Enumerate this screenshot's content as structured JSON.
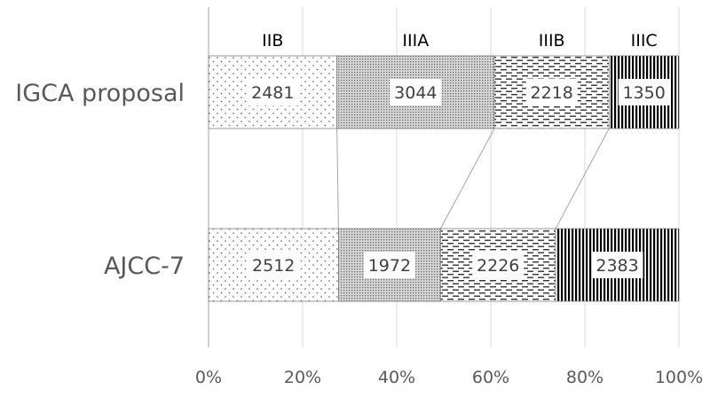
{
  "chart_data": {
    "type": "bar",
    "orientation": "horizontal",
    "stacking": "percent",
    "categories": [
      "IGCA proposal",
      "AJCC-7"
    ],
    "series": [
      {
        "name": "IIB",
        "values": [
          2481,
          2512
        ],
        "pattern": "sparse-dots"
      },
      {
        "name": "IIIA",
        "values": [
          3044,
          1972
        ],
        "pattern": "dense-dots"
      },
      {
        "name": "IIIB",
        "values": [
          2218,
          2226
        ],
        "pattern": "dashes"
      },
      {
        "name": "IIIC",
        "values": [
          1350,
          2383
        ],
        "pattern": "vertical-stripes"
      }
    ],
    "x_ticks": [
      "0%",
      "20%",
      "40%",
      "60%",
      "80%",
      "100%"
    ],
    "xlim": [
      0,
      100
    ],
    "grid": true,
    "legend": "top",
    "title": "",
    "xlabel": "",
    "ylabel": "",
    "series_connector_lines": true
  }
}
